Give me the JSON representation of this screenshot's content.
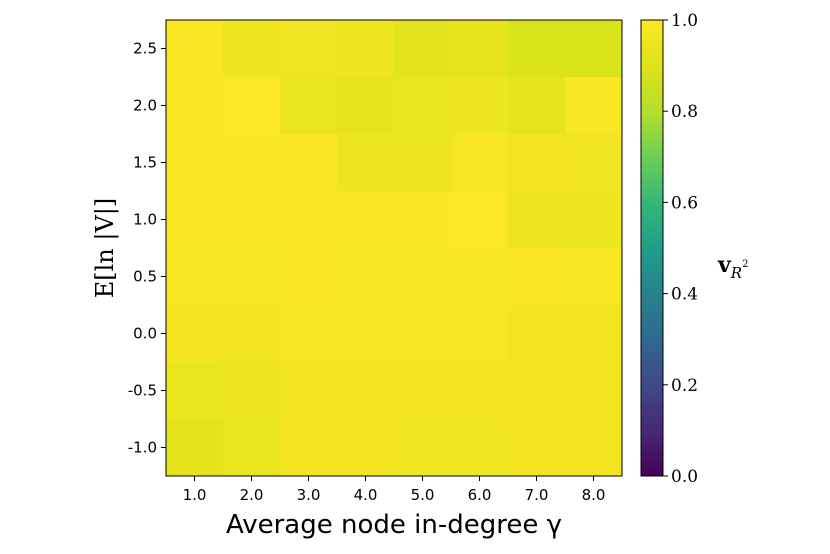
{
  "chart_data": {
    "type": "heatmap",
    "xlabel": "Average node in-degree γ",
    "ylabel": "E[ln |V|]",
    "x_ticks": [
      "1.0",
      "2.0",
      "3.0",
      "4.0",
      "5.0",
      "6.0",
      "7.0",
      "8.0"
    ],
    "y_ticks": [
      "2.5",
      "2.0",
      "1.5",
      "1.0",
      "0.5",
      "0.0",
      "-0.5",
      "-1.0"
    ],
    "y_rows_top_to_bottom": [
      2.5,
      2.0,
      1.5,
      1.0,
      0.5,
      0.0,
      -0.5,
      -1.0
    ],
    "values": [
      [
        0.99,
        0.95,
        0.96,
        0.95,
        0.92,
        0.93,
        0.89,
        0.89
      ],
      [
        0.99,
        1.0,
        0.94,
        0.93,
        0.94,
        0.95,
        0.93,
        0.98
      ],
      [
        0.99,
        0.99,
        0.99,
        0.95,
        0.95,
        0.98,
        0.97,
        0.96
      ],
      [
        0.99,
        0.99,
        0.99,
        0.99,
        0.99,
        1.0,
        0.95,
        0.95
      ],
      [
        0.98,
        0.98,
        0.99,
        0.98,
        0.98,
        0.98,
        0.99,
        0.98
      ],
      [
        0.97,
        0.97,
        0.98,
        0.98,
        0.98,
        0.98,
        0.97,
        0.97
      ],
      [
        0.94,
        0.95,
        0.97,
        0.97,
        0.97,
        0.97,
        0.97,
        0.97
      ],
      [
        0.92,
        0.94,
        0.97,
        0.97,
        0.96,
        0.96,
        0.97,
        0.97
      ]
    ],
    "colorbar": {
      "label": "v_{R²}",
      "label_main": "v",
      "label_sub": "R",
      "label_sup": "2",
      "range": [
        0.0,
        1.0
      ],
      "ticks": [
        "0.0",
        "0.2",
        "0.4",
        "0.6",
        "0.8",
        "1.0"
      ],
      "colormap": "viridis"
    }
  }
}
